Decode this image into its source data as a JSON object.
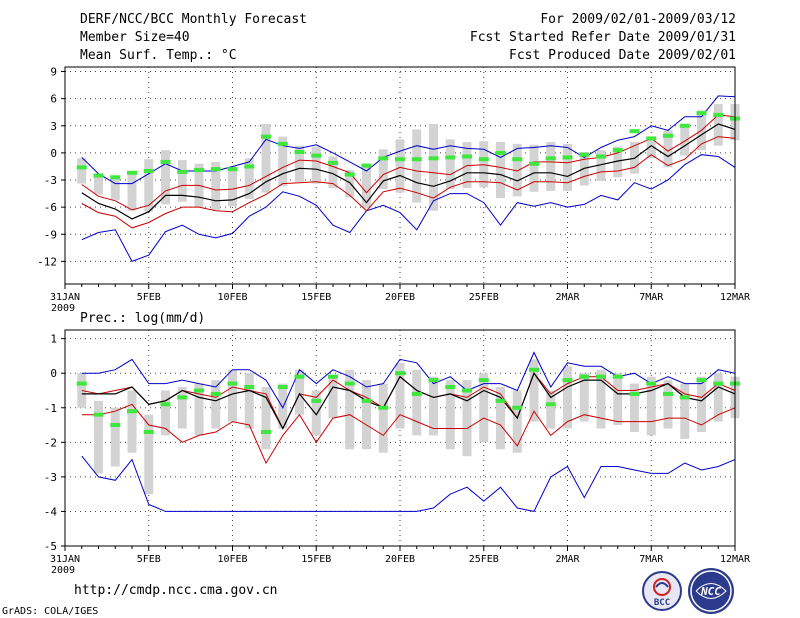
{
  "header": {
    "title": "DERF/NCC/BCC Monthly Forecast",
    "member": "Member Size=40",
    "variable": "Mean Surf. Temp.: °C",
    "period": "For 2009/02/01-2009/03/12",
    "started": "Fcst Started Refer Date 2009/01/31",
    "produced": "Fcst Produced Date 2009/02/01"
  },
  "footer": {
    "url": "http://cmdp.ncc.cma.gov.cn",
    "grads": "GrADS: COLA/IGES",
    "logo_left_text": "BCC",
    "logo_right_text": "NCC"
  },
  "colors": {
    "envelope": "#0000cc",
    "band": "#cc0000",
    "mean": "#000000",
    "obs_marker": "#3ee63e",
    "box": "#d3d3d3"
  },
  "chart_data": [
    {
      "type": "line",
      "title": "Mean Surf. Temp.: °C",
      "ylim": [
        -14.5,
        9.5
      ],
      "yticks": [
        9,
        6,
        3,
        0,
        -3,
        -6,
        -9,
        -12
      ],
      "x_tick_labels": [
        "31JAN",
        "5FEB",
        "10FEB",
        "15FEB",
        "20FEB",
        "25FEB",
        "2MAR",
        "7MAR",
        "12MAR"
      ],
      "x_year_label": "2009",
      "x_tick_days": [
        0,
        5,
        10,
        15,
        20,
        25,
        30,
        35,
        40
      ],
      "days": [
        1,
        2,
        3,
        4,
        5,
        6,
        7,
        8,
        9,
        10,
        11,
        12,
        13,
        14,
        15,
        16,
        17,
        18,
        19,
        20,
        21,
        22,
        23,
        24,
        25,
        26,
        27,
        28,
        29,
        30,
        31,
        32,
        33,
        34,
        35,
        36,
        37,
        38,
        39,
        40
      ],
      "series": [
        {
          "name": "max",
          "role": "envelope",
          "values": [
            -0.5,
            -2.3,
            -3.4,
            -3.4,
            -2.3,
            -1.2,
            -2.0,
            -2.0,
            -2.0,
            -1.5,
            -1.0,
            1.5,
            0.8,
            0.5,
            0.9,
            0.0,
            -1.0,
            -2.0,
            -0.5,
            0.2,
            0.8,
            0.4,
            0.8,
            0.5,
            0.4,
            -0.5,
            0.5,
            0.6,
            0.8,
            0.6,
            -0.5,
            0.6,
            1.4,
            1.8,
            3.0,
            2.5,
            4.0,
            4.0,
            6.3,
            6.2
          ]
        },
        {
          "name": "upper",
          "role": "band",
          "values": [
            -3.5,
            -4.8,
            -5.3,
            -6.3,
            -5.8,
            -4.2,
            -3.6,
            -3.6,
            -4.1,
            -4.0,
            -3.6,
            -2.6,
            -1.6,
            -0.8,
            -0.9,
            -1.5,
            -2.2,
            -4.4,
            -2.4,
            -1.6,
            -2.0,
            -2.2,
            -2.4,
            -1.4,
            -1.3,
            -1.6,
            -2.0,
            -1.0,
            -1.0,
            -1.1,
            -0.7,
            -0.5,
            0.0,
            0.8,
            1.6,
            0.2,
            1.3,
            2.5,
            4.2,
            4.0
          ]
        },
        {
          "name": "mean",
          "role": "mean",
          "values": [
            -4.4,
            -5.6,
            -6.2,
            -7.3,
            -6.5,
            -4.7,
            -4.7,
            -4.9,
            -5.3,
            -5.2,
            -4.5,
            -3.2,
            -2.3,
            -1.7,
            -1.8,
            -2.3,
            -3.3,
            -5.5,
            -3.1,
            -2.5,
            -3.3,
            -3.7,
            -3.1,
            -2.2,
            -2.2,
            -2.4,
            -3.1,
            -2.2,
            -2.2,
            -2.6,
            -1.7,
            -1.3,
            -0.9,
            -0.6,
            0.8,
            -0.4,
            0.8,
            2.0,
            3.2,
            2.6
          ]
        },
        {
          "name": "lower",
          "role": "band",
          "values": [
            -5.6,
            -6.6,
            -7.0,
            -8.3,
            -7.7,
            -6.7,
            -6.0,
            -6.0,
            -6.4,
            -6.5,
            -5.5,
            -4.6,
            -3.4,
            -3.3,
            -3.2,
            -3.4,
            -4.7,
            -6.4,
            -4.3,
            -3.9,
            -4.4,
            -5.0,
            -3.8,
            -3.2,
            -3.2,
            -3.3,
            -4.1,
            -3.2,
            -3.2,
            -3.3,
            -2.6,
            -2.1,
            -2.0,
            -1.6,
            -0.2,
            -1.4,
            -0.7,
            1.0,
            1.8,
            1.6
          ]
        },
        {
          "name": "min",
          "role": "envelope",
          "values": [
            -9.6,
            -8.8,
            -8.5,
            -12.0,
            -11.3,
            -8.7,
            -8.0,
            -9.0,
            -9.4,
            -8.9,
            -7.0,
            -6.0,
            -4.3,
            -4.8,
            -5.8,
            -8.0,
            -8.8,
            -6.4,
            -5.8,
            -6.6,
            -8.5,
            -5.3,
            -4.5,
            -4.5,
            -5.5,
            -8.0,
            -5.5,
            -5.9,
            -5.5,
            -6.0,
            -5.7,
            -4.7,
            -5.2,
            -3.3,
            -4.0,
            -3.0,
            -1.3,
            -0.2,
            -0.4,
            -1.6
          ]
        },
        {
          "name": "obs",
          "role": "marker",
          "values": [
            -1.6,
            -2.5,
            -2.7,
            -2.2,
            -2.0,
            -1.0,
            -2.1,
            -1.9,
            -1.8,
            -1.8,
            -1.5,
            1.8,
            1.0,
            0.1,
            -0.3,
            -1.1,
            -2.4,
            -1.4,
            -0.6,
            -0.7,
            -0.7,
            -0.6,
            -0.5,
            -0.4,
            -0.7,
            0.0,
            -0.7,
            -1.2,
            -0.6,
            -0.5,
            -0.2,
            -0.4,
            0.3,
            2.4,
            1.6,
            1.9,
            3.0,
            4.4,
            4.2,
            3.8
          ]
        },
        {
          "name": "box_top",
          "role": "box",
          "values": [
            -0.6,
            -2.5,
            -2.8,
            -2.4,
            -0.7,
            0.3,
            -0.8,
            -1.2,
            -1.0,
            -1.5,
            -0.6,
            3.2,
            1.8,
            0.8,
            0.7,
            -0.4,
            -1.9,
            -1.5,
            0.4,
            1.5,
            2.6,
            3.2,
            1.5,
            1.2,
            1.3,
            1.2,
            1.0,
            0.9,
            1.2,
            1.0,
            0.1,
            0.3,
            0.7,
            1.2,
            1.8,
            2.5,
            3.1,
            4.7,
            5.4,
            5.4
          ]
        },
        {
          "name": "box_bottom",
          "role": "box",
          "values": [
            -3.4,
            -4.6,
            -5.2,
            -6.4,
            -6.5,
            -5.7,
            -5.4,
            -6.0,
            -6.3,
            -5.9,
            -5.1,
            -4.4,
            -3.7,
            -3.2,
            -3.4,
            -3.9,
            -4.9,
            -6.1,
            -4.0,
            -4.4,
            -5.5,
            -6.4,
            -4.0,
            -3.9,
            -3.8,
            -5.0,
            -4.8,
            -4.3,
            -4.2,
            -4.2,
            -3.6,
            -3.1,
            -2.7,
            -2.3,
            -0.6,
            -1.6,
            -0.3,
            0.3,
            0.8,
            1.4
          ]
        }
      ]
    },
    {
      "type": "line",
      "title": "Prec.: log(mm/d)",
      "ylim": [
        -5,
        1.25
      ],
      "yticks": [
        1,
        0,
        -1,
        -2,
        -3,
        -4,
        -5
      ],
      "x_tick_labels": [
        "31JAN",
        "5FEB",
        "10FEB",
        "15FEB",
        "20FEB",
        "25FEB",
        "2MAR",
        "7MAR",
        "12MAR"
      ],
      "x_year_label": "2009",
      "x_tick_days": [
        0,
        5,
        10,
        15,
        20,
        25,
        30,
        35,
        40
      ],
      "days": [
        1,
        2,
        3,
        4,
        5,
        6,
        7,
        8,
        9,
        10,
        11,
        12,
        13,
        14,
        15,
        16,
        17,
        18,
        19,
        20,
        21,
        22,
        23,
        24,
        25,
        26,
        27,
        28,
        29,
        30,
        31,
        32,
        33,
        34,
        35,
        36,
        37,
        38,
        39,
        40
      ],
      "series": [
        {
          "name": "max",
          "role": "envelope",
          "values": [
            0.0,
            0.0,
            0.1,
            0.4,
            -0.3,
            -0.3,
            -0.2,
            -0.3,
            -0.4,
            0.1,
            0.1,
            -0.2,
            -1.0,
            0.1,
            -0.3,
            0.1,
            -0.1,
            -0.4,
            -0.3,
            0.4,
            0.3,
            -0.3,
            -0.1,
            -0.5,
            -0.3,
            -0.3,
            -0.5,
            0.6,
            -0.4,
            0.3,
            0.2,
            0.2,
            -0.1,
            0.0,
            -0.3,
            -0.1,
            -0.3,
            -0.3,
            0.1,
            0.0
          ]
        },
        {
          "name": "upper",
          "role": "band",
          "values": [
            -0.5,
            -0.6,
            -0.5,
            -0.4,
            -0.9,
            -0.8,
            -0.5,
            -0.6,
            -0.7,
            -0.4,
            -0.5,
            -0.6,
            -1.6,
            -0.6,
            -0.7,
            -0.2,
            -0.5,
            -0.7,
            -1.0,
            -0.1,
            -0.5,
            -0.7,
            -0.6,
            -0.7,
            -0.4,
            -0.6,
            -1.3,
            0.0,
            -0.6,
            -0.3,
            -0.1,
            -0.1,
            -0.5,
            -0.5,
            -0.4,
            -0.3,
            -0.6,
            -0.7,
            -0.3,
            -0.5
          ]
        },
        {
          "name": "mean",
          "role": "mean",
          "values": [
            -0.6,
            -0.6,
            -0.6,
            -0.4,
            -0.9,
            -0.8,
            -0.5,
            -0.7,
            -0.8,
            -0.6,
            -0.5,
            -0.7,
            -1.6,
            -0.6,
            -1.2,
            -0.4,
            -0.5,
            -0.8,
            -1.0,
            -0.1,
            -0.5,
            -0.7,
            -0.6,
            -0.8,
            -0.5,
            -0.7,
            -1.3,
            0.0,
            -0.7,
            -0.4,
            -0.2,
            -0.2,
            -0.6,
            -0.6,
            -0.5,
            -0.3,
            -0.7,
            -0.8,
            -0.4,
            -0.6
          ]
        },
        {
          "name": "lower",
          "role": "band",
          "values": [
            -1.2,
            -1.2,
            -1.1,
            -0.9,
            -1.5,
            -1.6,
            -2.0,
            -1.8,
            -1.7,
            -1.4,
            -1.5,
            -2.6,
            -1.8,
            -1.2,
            -2.0,
            -1.3,
            -1.2,
            -1.5,
            -1.8,
            -1.2,
            -1.4,
            -1.6,
            -1.6,
            -1.6,
            -1.3,
            -1.5,
            -2.1,
            -1.1,
            -1.8,
            -1.4,
            -1.2,
            -1.3,
            -1.4,
            -1.4,
            -1.4,
            -1.3,
            -1.3,
            -1.5,
            -1.2,
            -1.0
          ]
        },
        {
          "name": "min",
          "role": "envelope",
          "values": [
            -2.4,
            -3.0,
            -3.1,
            -2.5,
            -3.8,
            -4.0,
            -4.0,
            -4.0,
            -4.0,
            -4.0,
            -4.0,
            -4.0,
            -4.0,
            -4.0,
            -4.0,
            -4.0,
            -4.0,
            -4.0,
            -4.0,
            -4.0,
            -4.0,
            -3.9,
            -3.5,
            -3.3,
            -3.7,
            -3.3,
            -3.9,
            -4.0,
            -3.0,
            -2.7,
            -3.6,
            -2.7,
            -2.7,
            -2.8,
            -2.9,
            -2.9,
            -2.6,
            -2.8,
            -2.7,
            -2.5
          ]
        },
        {
          "name": "obs",
          "role": "marker",
          "values": [
            -0.3,
            -1.2,
            -1.5,
            -1.1,
            -1.7,
            -0.9,
            -0.7,
            -0.5,
            -0.6,
            -0.3,
            -0.4,
            -1.7,
            -0.4,
            -0.1,
            -0.8,
            -0.1,
            -0.3,
            -0.8,
            -1.0,
            0.0,
            -0.6,
            -0.2,
            -0.4,
            -0.5,
            -0.2,
            -0.8,
            -1.0,
            0.1,
            -0.9,
            -0.2,
            -0.1,
            -0.1,
            -0.1,
            -0.6,
            -0.3,
            -0.6,
            -0.7,
            -0.2,
            -0.3,
            -0.3
          ]
        },
        {
          "name": "box_top",
          "role": "box",
          "values": [
            0.0,
            -0.8,
            -1.0,
            -0.5,
            -1.2,
            -0.5,
            -0.4,
            -0.3,
            -0.2,
            0.1,
            0.0,
            -0.4,
            -0.3,
            0.1,
            -0.5,
            -0.1,
            0.1,
            -0.2,
            -0.3,
            0.3,
            0.1,
            -0.1,
            -0.2,
            -0.2,
            0.0,
            -0.4,
            -0.5,
            0.4,
            -0.5,
            0.2,
            0.0,
            0.1,
            0.0,
            -0.3,
            -0.1,
            -0.2,
            -0.3,
            -0.1,
            0.0,
            -0.1
          ]
        },
        {
          "name": "box_bottom",
          "role": "box",
          "values": [
            -1.0,
            -2.9,
            -2.7,
            -2.3,
            -3.5,
            -1.8,
            -1.6,
            -1.8,
            -1.6,
            -1.4,
            -1.6,
            -2.2,
            -1.6,
            -1.2,
            -1.8,
            -1.3,
            -2.2,
            -2.2,
            -2.3,
            -1.6,
            -1.8,
            -1.8,
            -2.2,
            -2.4,
            -2.0,
            -2.2,
            -2.3,
            -1.4,
            -1.6,
            -1.6,
            -1.4,
            -1.6,
            -1.5,
            -1.7,
            -1.8,
            -1.6,
            -1.9,
            -1.7,
            -1.4,
            -1.3
          ]
        }
      ]
    }
  ]
}
